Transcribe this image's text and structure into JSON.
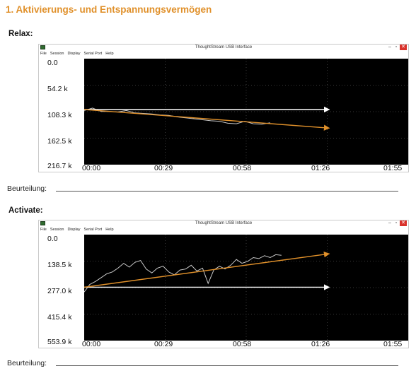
{
  "heading": "1. Aktivierungs- und Entspannungsvermögen",
  "colors": {
    "heading": "#e0902a",
    "arrow_orange": "#e0902a",
    "arrow_white": "#ffffff",
    "trace": "#c8c8c8",
    "plot_bg": "#000000"
  },
  "window": {
    "title": "ThoughtStream USB Interface",
    "menu": [
      "File",
      "Session",
      "Display",
      "Serial Port",
      "Help"
    ],
    "controls": [
      "–",
      "▫",
      "✕"
    ]
  },
  "sections": [
    {
      "label": "Relax:",
      "rating_label": "Beurteilung:",
      "chart_data": {
        "type": "line",
        "y_ticks": [
          "0.0",
          "54.2 k",
          "108.3 k",
          "162.5 k",
          "216.7 k"
        ],
        "x_ticks": [
          "00:00",
          "00:29",
          "00:58",
          "01:26",
          "01:55"
        ],
        "ylim": [
          0,
          216.7
        ],
        "y_inverted": true,
        "xlim": [
          0,
          115
        ],
        "grid": true,
        "series": [
          {
            "x": [
              0,
              3,
              6,
              9,
              12,
              15,
              18,
              21,
              24,
              27,
              30,
              33,
              36,
              39,
              42,
              45,
              48,
              51,
              54,
              57,
              60,
              63,
              66
            ],
            "y": [
              106,
              101,
              108,
              108,
              109,
              106,
              111,
              112,
              113,
              115,
              116,
              119,
              121,
              123,
              125,
              127,
              128,
              132,
              133,
              128,
              133,
              134,
              131
            ]
          }
        ],
        "arrows": [
          {
            "color": "white",
            "x": [
              0,
              87
            ],
            "y": [
              104,
              104
            ]
          },
          {
            "color": "orange",
            "x": [
              0,
              87
            ],
            "y": [
              104,
              142
            ]
          }
        ]
      }
    },
    {
      "label": "Activate:",
      "rating_label": "Beurteilung:",
      "chart_data": {
        "type": "line",
        "y_ticks": [
          "0.0",
          "138.5 k",
          "277.0 k",
          "415.4 k",
          "553.9 k"
        ],
        "x_ticks": [
          "00:00",
          "00:29",
          "00:58",
          "01:26",
          "01:55"
        ],
        "ylim": [
          0,
          553.9
        ],
        "y_inverted": true,
        "xlim": [
          0,
          115
        ],
        "grid": true,
        "series": [
          {
            "x": [
              0,
              2,
              4,
              6,
              8,
              10,
              12,
              14,
              16,
              18,
              20,
              22,
              24,
              26,
              28,
              30,
              32,
              34,
              36,
              38,
              40,
              42,
              44,
              46,
              48,
              50,
              52,
              54,
              56,
              58,
              60,
              62,
              64,
              66,
              68,
              70
            ],
            "y": [
              300,
              260,
              245,
              225,
              205,
              195,
              175,
              150,
              170,
              145,
              135,
              180,
              200,
              175,
              165,
              195,
              210,
              185,
              180,
              160,
              190,
              175,
              255,
              185,
              165,
              180,
              160,
              130,
              150,
              140,
              120,
              125,
              110,
              120,
              105,
              108
            ]
          }
        ],
        "arrows": [
          {
            "color": "white",
            "x": [
              0,
              87
            ],
            "y": [
              275,
              275
            ]
          },
          {
            "color": "orange",
            "x": [
              0,
              87
            ],
            "y": [
              275,
              100
            ]
          }
        ]
      }
    }
  ]
}
